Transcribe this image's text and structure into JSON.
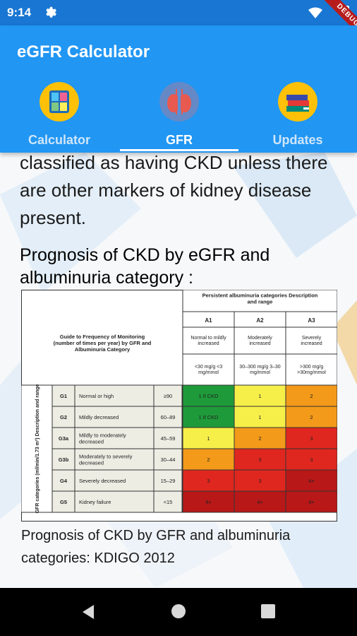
{
  "status_bar": {
    "time": "9:14",
    "debug_label": "DEBUG"
  },
  "app_bar": {
    "title": "eGFR Calculator",
    "tabs": [
      {
        "label": "Calculator",
        "icon": "calculator-icon",
        "selected": false
      },
      {
        "label": "GFR",
        "icon": "kidney-icon",
        "selected": true
      },
      {
        "label": "Updates",
        "icon": "books-icon",
        "selected": false
      }
    ]
  },
  "content": {
    "body_text": "classified as having CKD unless there are other markers of kidney disease present.",
    "section_title": "Prognosis of CKD by eGFR and albuminuria category :",
    "caption": "Prognosis of CKD by GFR and albuminuria categories: KDIGO 2012",
    "table": {
      "guide_text": "Guide to Frequency of Monitoring (number of times per year) by GFR and Albuminuria Category",
      "albuminuria_header": "Persistent albuminuria categories Description and range",
      "albuminuria_columns": [
        {
          "code": "A1",
          "desc": "Normal to mildly increased",
          "range": "<30 mg/g <3 mg/mmol"
        },
        {
          "code": "A2",
          "desc": "Moderately increased",
          "range": "30–300 mg/g 3–30 mg/mmol"
        },
        {
          "code": "A3",
          "desc": "Severely increased",
          "range": ">300 mg/g >30mg/mmol"
        }
      ],
      "gfr_axis_label": "GFR categories (ml/min/1.73 m²) Description and range",
      "rows": [
        {
          "code": "G1",
          "desc": "Normal or high",
          "range": "≥90",
          "cells": [
            "1 if CKD",
            "1",
            "2"
          ]
        },
        {
          "code": "G2",
          "desc": "Mildly decreased",
          "range": "60–89",
          "cells": [
            "1 if CKD",
            "1",
            "2"
          ]
        },
        {
          "code": "G3a",
          "desc": "Mildly to moderately decreased",
          "range": "45–59",
          "cells": [
            "1",
            "2",
            "3"
          ]
        },
        {
          "code": "G3b",
          "desc": "Moderately to severely decreased",
          "range": "30–44",
          "cells": [
            "2",
            "3",
            "3"
          ]
        },
        {
          "code": "G4",
          "desc": "Severely decreased",
          "range": "15–29",
          "cells": [
            "3",
            "3",
            "4+"
          ]
        },
        {
          "code": "G5",
          "desc": "Kidney failure",
          "range": "<15",
          "cells": [
            "4+",
            "4+",
            "4+"
          ]
        }
      ],
      "colors": {
        "green": "#1f9a3a",
        "yellow": "#f6ef4a",
        "orange": "#f39a1a",
        "red": "#e0271f",
        "dark_red": "#b81818",
        "label_bg": "#eeede4"
      }
    }
  }
}
